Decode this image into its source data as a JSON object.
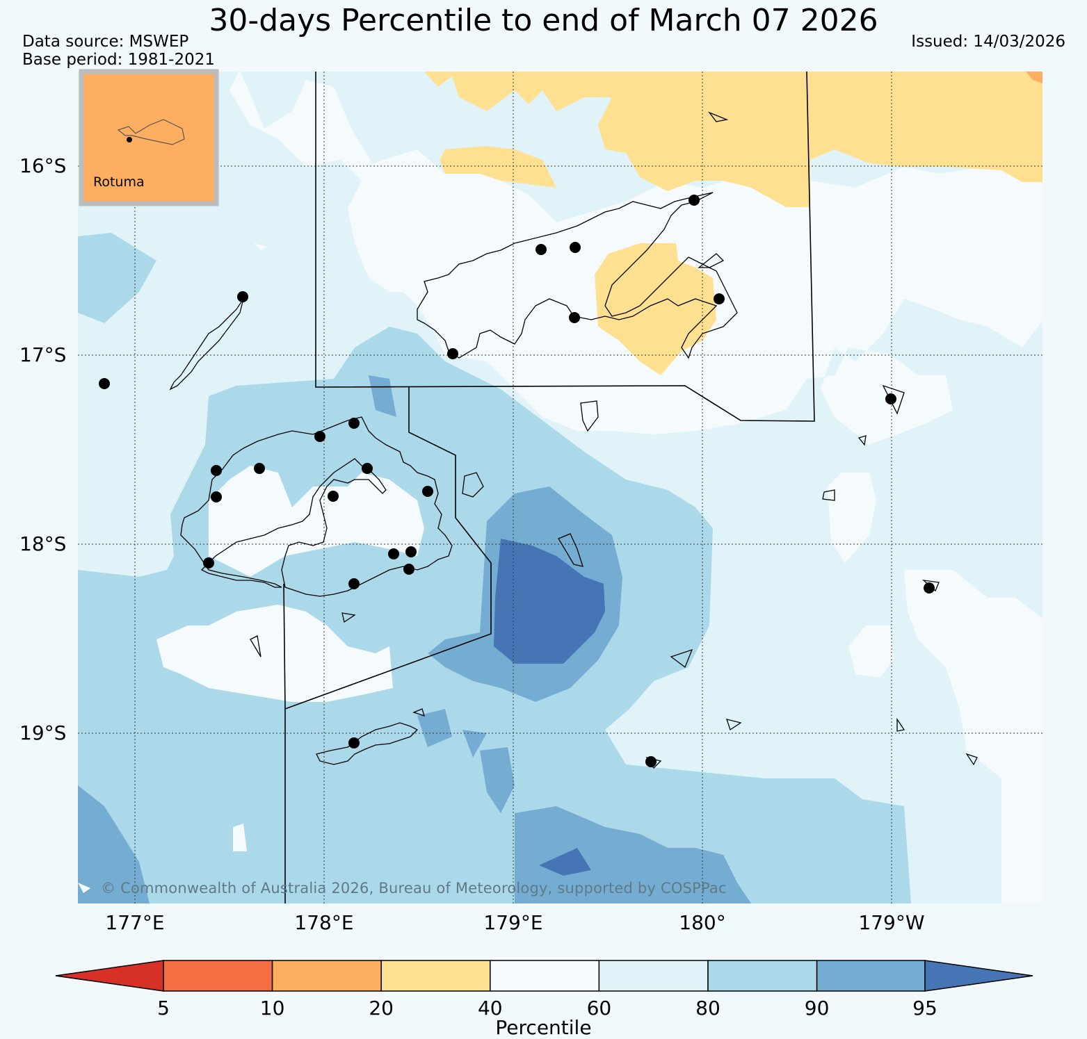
{
  "title": "30-days Percentile to end of March 07 2026",
  "data_source": "Data source: MSWEP",
  "base_period": "Base period: 1981-2021",
  "issued": "Issued: 14/03/2026",
  "latitude_labels": [
    "16°S",
    "17°S",
    "18°S",
    "19°S"
  ],
  "longitude_labels": [
    "177°E",
    "178°E",
    "179°E",
    "180°",
    "179°W"
  ],
  "inset": {
    "label": "Rotuma"
  },
  "copyright": "© Commonwealth of Australia 2026, Bureau of Meteorology, supported by COSPPac",
  "colorbar": {
    "title": "Percentile",
    "ticks": [
      "5",
      "10",
      "20",
      "40",
      "60",
      "80",
      "90",
      "95"
    ],
    "colors": {
      "below_5": "#d73027",
      "5_10": "#f46d43",
      "10_20": "#fdae61",
      "20_40": "#fee090",
      "40_60": "#f5fbfd",
      "60_80": "#e0f3f8",
      "80_90": "#abd9e9",
      "90_95": "#74add1",
      "above_95": "#4575b4"
    }
  }
}
